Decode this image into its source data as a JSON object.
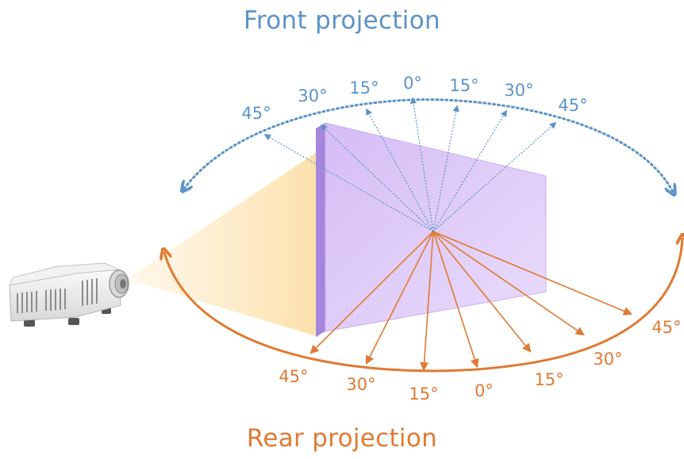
{
  "titles": {
    "front": "Front projection",
    "rear": "Rear projection"
  },
  "front_angles": [
    "45°",
    "30°",
    "15°",
    "0°",
    "15°",
    "30°",
    "45°"
  ],
  "rear_angles": [
    "45°",
    "30°",
    "15°",
    "0°",
    "15°",
    "30°",
    "45°"
  ],
  "colors": {
    "front": "#5b93c7",
    "rear": "#e07a33",
    "screen_face": "#dcc8f4",
    "screen_edge": "#9b7ad6",
    "beam": "#fde7bd"
  },
  "icons": {
    "projector": "projector-icon"
  }
}
